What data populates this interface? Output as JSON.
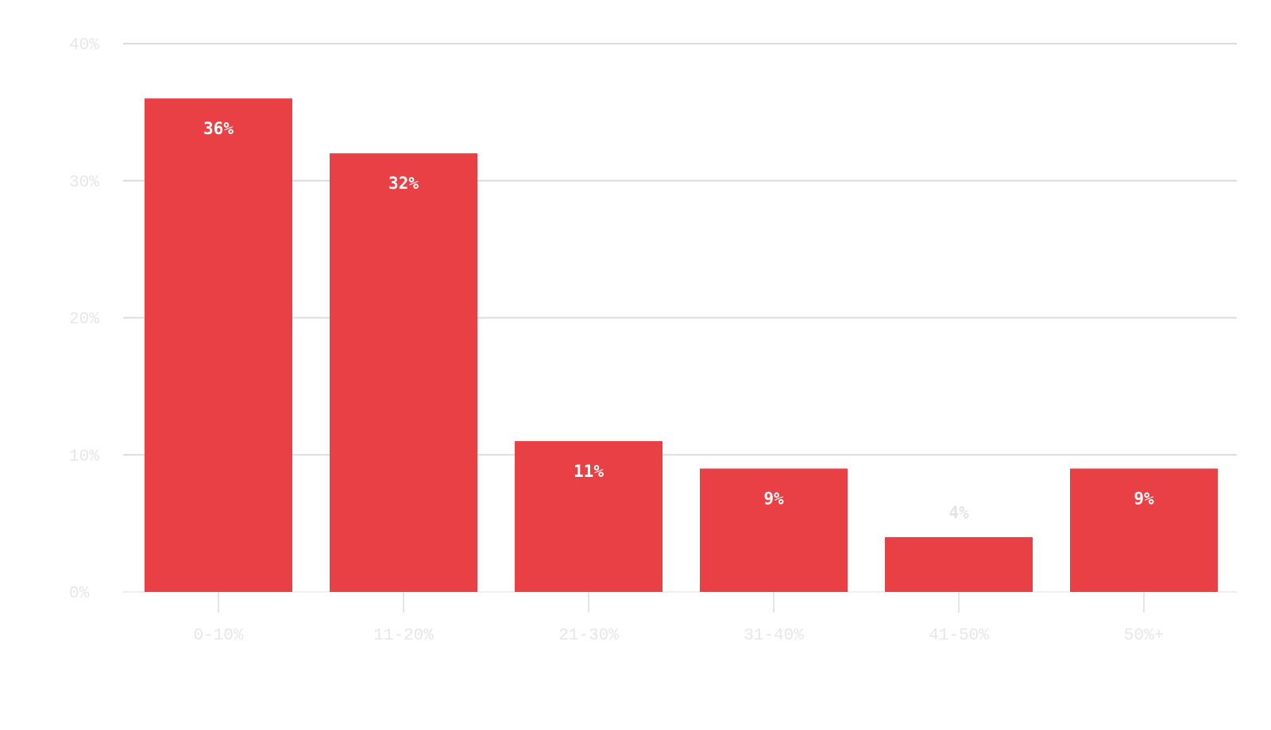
{
  "chart_data": {
    "type": "bar",
    "categories": [
      "0-10%",
      "11-20%",
      "21-30%",
      "31-40%",
      "41-50%",
      "50%+"
    ],
    "values": [
      36,
      32,
      11,
      9,
      4,
      9
    ],
    "data_labels": [
      "36%",
      "32%",
      "11%",
      "9%",
      "4%",
      "9%"
    ],
    "y_ticks": [
      0,
      10,
      20,
      30,
      40
    ],
    "y_tick_labels": [
      "0%",
      "10%",
      "20%",
      "30%",
      "40%"
    ],
    "ylim": [
      0,
      40
    ],
    "grid": true,
    "bar_color": "#e94045",
    "title": "",
    "xlabel": "",
    "ylabel": ""
  }
}
